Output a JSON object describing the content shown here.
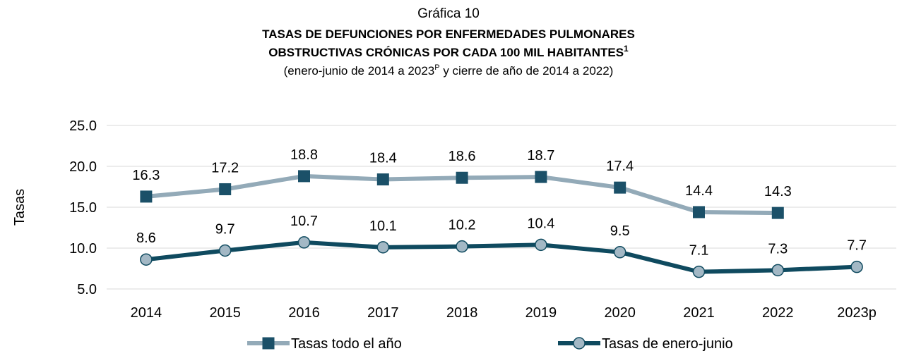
{
  "chart_data": {
    "type": "line",
    "chart_label": "Gráfica 10",
    "title": [
      "TASAS DE DEFUNCIONES POR ENFERMEDADES PULMONARES",
      "OBSTRUCTIVAS CRÓNICAS POR CADA 100 MIL HABITANTES"
    ],
    "title_note": "1",
    "subtitle": [
      "(enero-junio de 2014 a 2023",
      "P",
      " y cierre de año de 2014 a 2022)"
    ],
    "ylabel": "Tasas",
    "categories": [
      "2014",
      "2015",
      "2016",
      "2017",
      "2018",
      "2019",
      "2020",
      "2021",
      "2022",
      "2023p"
    ],
    "series": [
      {
        "name": "Tasas todo el año",
        "color": "#93aab8",
        "marker": "square",
        "marker_color": "#1b5068",
        "values": [
          16.3,
          17.2,
          18.8,
          18.4,
          18.6,
          18.7,
          17.4,
          14.4,
          14.3,
          null
        ]
      },
      {
        "name": "Tasas de enero-junio",
        "color": "#0f4a5f",
        "marker": "circle",
        "marker_color": "#a3b8c5",
        "values": [
          8.6,
          9.7,
          10.7,
          10.1,
          10.2,
          10.4,
          9.5,
          7.1,
          7.3,
          7.7
        ]
      }
    ],
    "ylim": [
      5,
      25
    ],
    "yticks": [
      {
        "value": 5,
        "label": "5.0"
      },
      {
        "value": 10,
        "label": "10.0"
      },
      {
        "value": 15,
        "label": "15.0"
      },
      {
        "value": 20,
        "label": "20.0"
      },
      {
        "value": 25,
        "label": "25.0"
      }
    ],
    "grid": true,
    "legend": "bottom"
  }
}
